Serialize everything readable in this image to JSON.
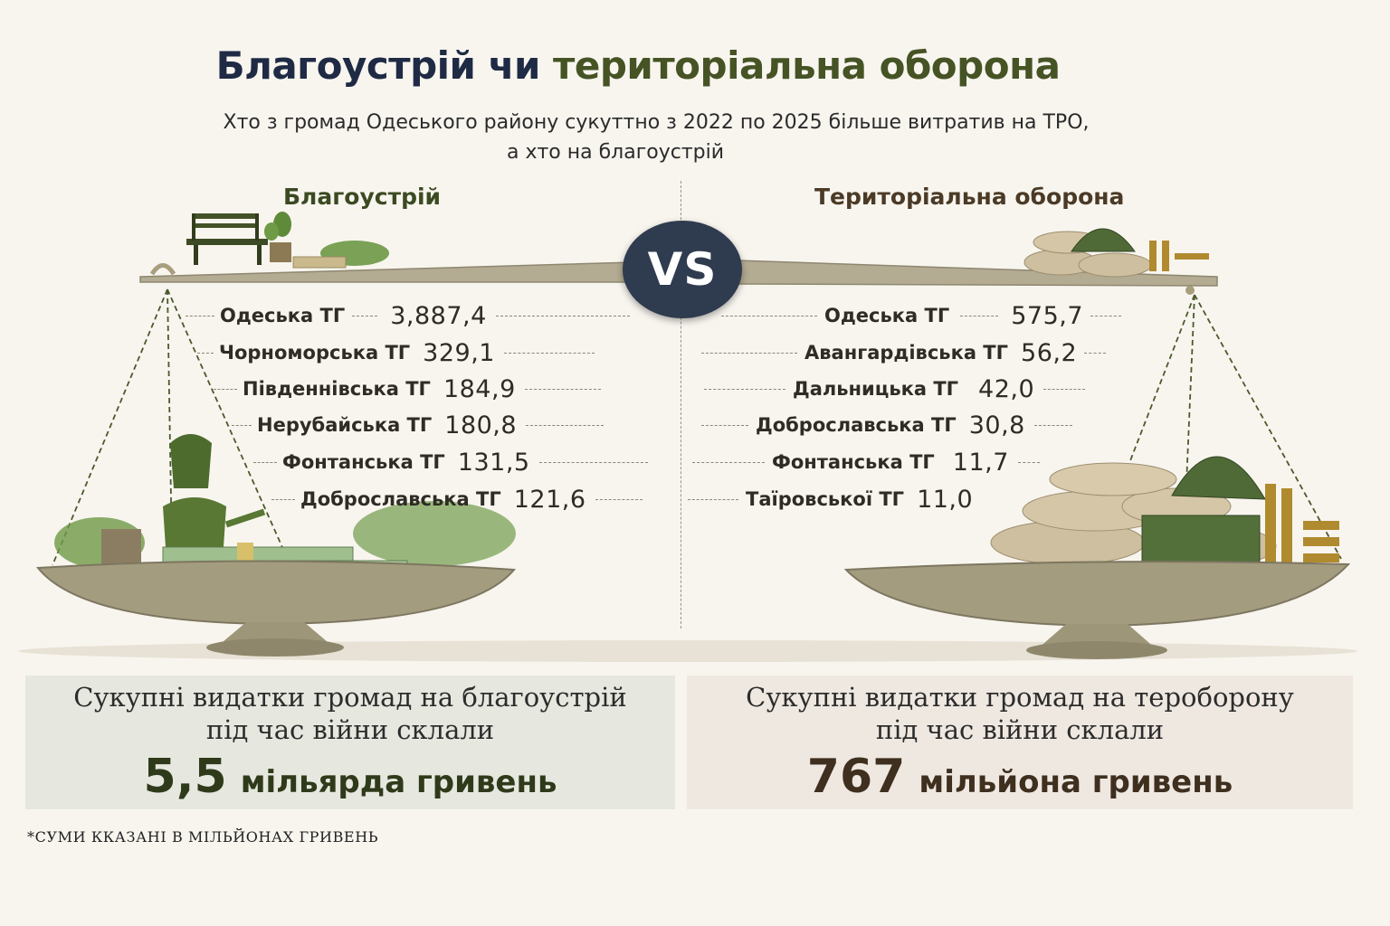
{
  "title": {
    "part1": "Благоустрій чи",
    "part2": "територіальна оборона"
  },
  "subtitle": {
    "line1": "Хто з громад Одеського району сукуттно з 2022 по 2025 більше витратив на ТРО,",
    "line2": "а хто на благоустрій"
  },
  "left": {
    "heading": "Благоустрій",
    "items": [
      {
        "name": "Одеська ТГ",
        "value": "3,887,4"
      },
      {
        "name": "Чорноморська ТГ",
        "value": "329,1"
      },
      {
        "name": "Південнівська ТГ",
        "value": "184,9"
      },
      {
        "name": "Нерубайська ТГ",
        "value": "180,8"
      },
      {
        "name": "Фонтанська ТГ",
        "value": "131,5"
      },
      {
        "name": "Доброславська ТГ",
        "value": "121,6"
      }
    ]
  },
  "right": {
    "heading": "Територіальна оборона",
    "items": [
      {
        "name": "Одеська ТГ",
        "value": "575,7"
      },
      {
        "name": "Авангардівська ТГ",
        "value": "56,2"
      },
      {
        "name": "Дальницька ТГ",
        "value": "42,0"
      },
      {
        "name": "Доброславська ТГ",
        "value": "30,8"
      },
      {
        "name": "Фонтанська ТГ",
        "value": "11,7"
      },
      {
        "name": "Таїровської ТГ",
        "value": "11,0"
      }
    ]
  },
  "vs_label": "VS",
  "summary_left": {
    "line1": "Сукупні видатки громад на благоустрій",
    "line2": "під час війни склали",
    "amount": "5,5",
    "unit": "мільярда гривень"
  },
  "summary_right": {
    "line1": "Сукупні видатки громад на тероборону",
    "line2": "під час війни склали",
    "amount": "767",
    "unit": "мільйона гривень"
  },
  "footnote": "*СУМИ ККАЗАНІ В МІЛЬЙОНАХ ГРИВЕНЬ",
  "colors": {
    "green": "#465324",
    "navy": "#1f2a44",
    "stone": "#a29a7d",
    "money": "#9fbf8f",
    "sandbag": "#cdbf9f",
    "brass": "#b08a2e"
  }
}
